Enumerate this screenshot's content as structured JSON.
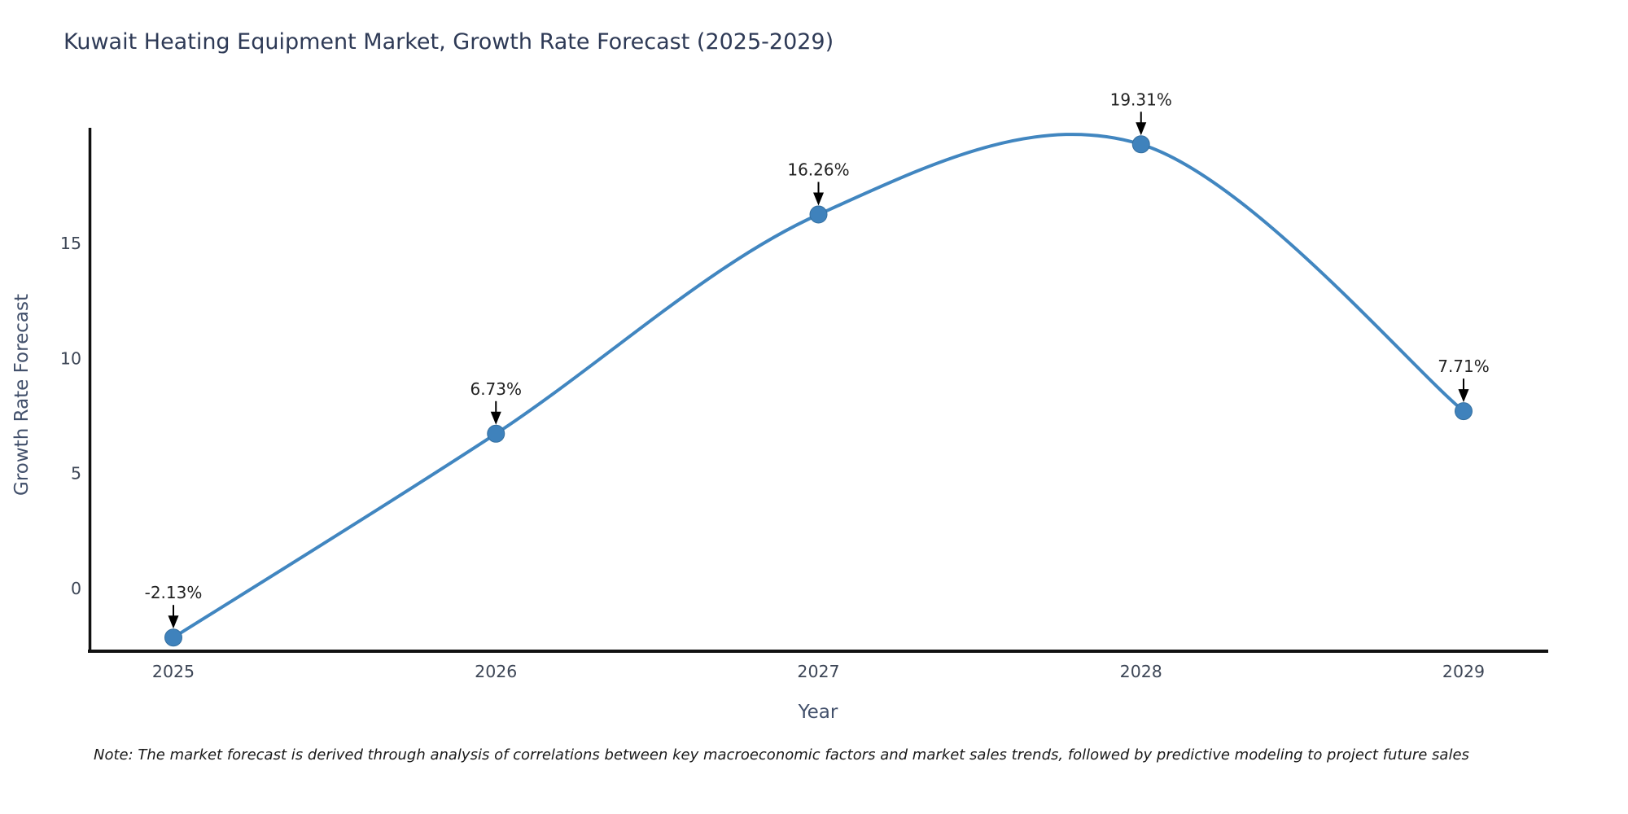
{
  "chart_data": {
    "type": "line",
    "title": "Kuwait Heating Equipment Market, Growth Rate Forecast (2025-2029)",
    "xlabel": "Year",
    "ylabel": "Growth Rate Forecast",
    "x": [
      2025,
      2026,
      2027,
      2028,
      2029
    ],
    "values": [
      -2.13,
      6.73,
      16.26,
      19.31,
      7.71
    ],
    "point_labels": [
      "-2.13%",
      "6.73%",
      "16.26%",
      "19.31%",
      "7.71%"
    ],
    "yticks": [
      0,
      5,
      10,
      15
    ],
    "ylim": [
      -2.8,
      20.0
    ],
    "grid": false,
    "legend": "none",
    "line_color": "#4186c0",
    "marker_color": "#3f82bc",
    "marker_stroke": "#356f9f",
    "axis_color": "#111111",
    "annotation_arrow_color": "#000000",
    "note": "Note: The market forecast is derived through analysis of correlations between key macroeconomic factors and market sales trends, followed by predictive modeling to project future sales"
  }
}
